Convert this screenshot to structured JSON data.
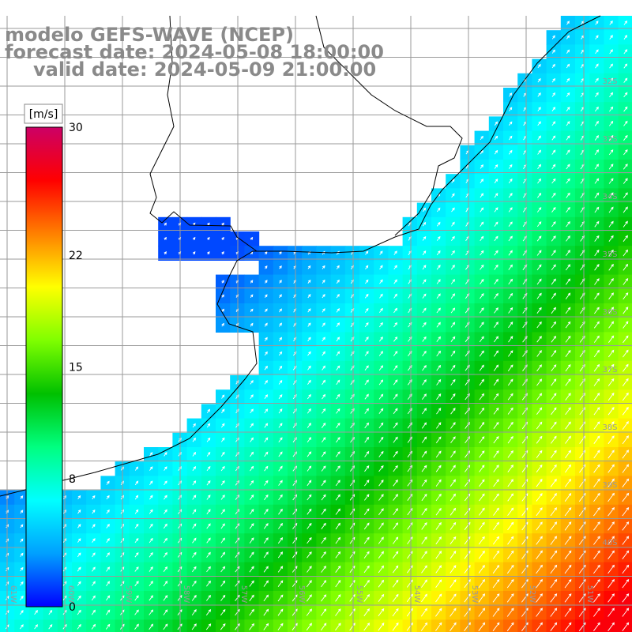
{
  "title": {
    "line1": "modelo GEFS-WAVE (NCEP)",
    "line2": "forecast date: 2024-05-08 18:00:00",
    "line3": "valid date: 2024-05-09 21:00:00"
  },
  "colorbar": {
    "unit": "[m/s]",
    "ticks": [
      "30",
      "22",
      "15",
      "8",
      "0"
    ],
    "tick_values": [
      30,
      22,
      15,
      8,
      0
    ],
    "min": 0,
    "max": 30,
    "colors": [
      "#0000ff",
      "#00a0ff",
      "#00ffff",
      "#00ff80",
      "#00c000",
      "#80ff00",
      "#ffff00",
      "#ff8000",
      "#ff0000",
      "#cc0066"
    ]
  },
  "map": {
    "lat_labels": [
      "32S",
      "33S",
      "34S",
      "35S",
      "36S",
      "37S",
      "38S",
      "39S",
      "40S"
    ],
    "lon_labels": [
      "61W",
      "60W",
      "59W",
      "58W",
      "57W",
      "56W",
      "55W",
      "54W",
      "53W",
      "52W",
      "51W"
    ],
    "land_color": "#ffffff",
    "grid_color": "#9a9a9a",
    "coast_color": "#000000",
    "arrow_color": "#ffffff"
  }
}
